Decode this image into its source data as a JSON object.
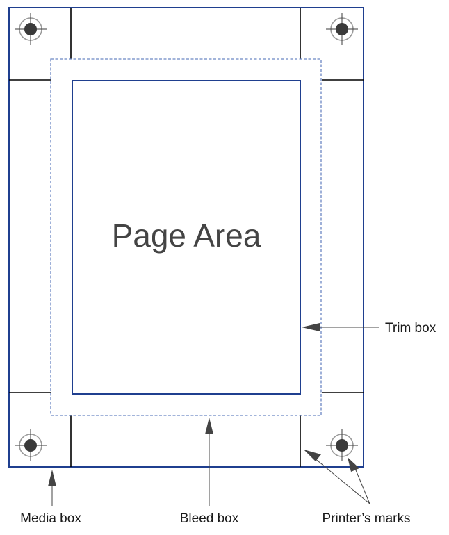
{
  "diagram": {
    "page_area_label": "Page Area",
    "labels": {
      "trim_box": "Trim box",
      "media_box": "Media box",
      "bleed_box": "Bleed box",
      "printers_marks": "Printer’s marks"
    }
  },
  "colors": {
    "box_stroke": "#1f3f8f",
    "bleed_stroke": "#6b86c4",
    "mark_stroke": "#000000",
    "registration_fill": "#3a3a3a",
    "registration_ring": "#9a9a9a",
    "arrow_fill": "#444444",
    "text": "#1a1a1a"
  }
}
